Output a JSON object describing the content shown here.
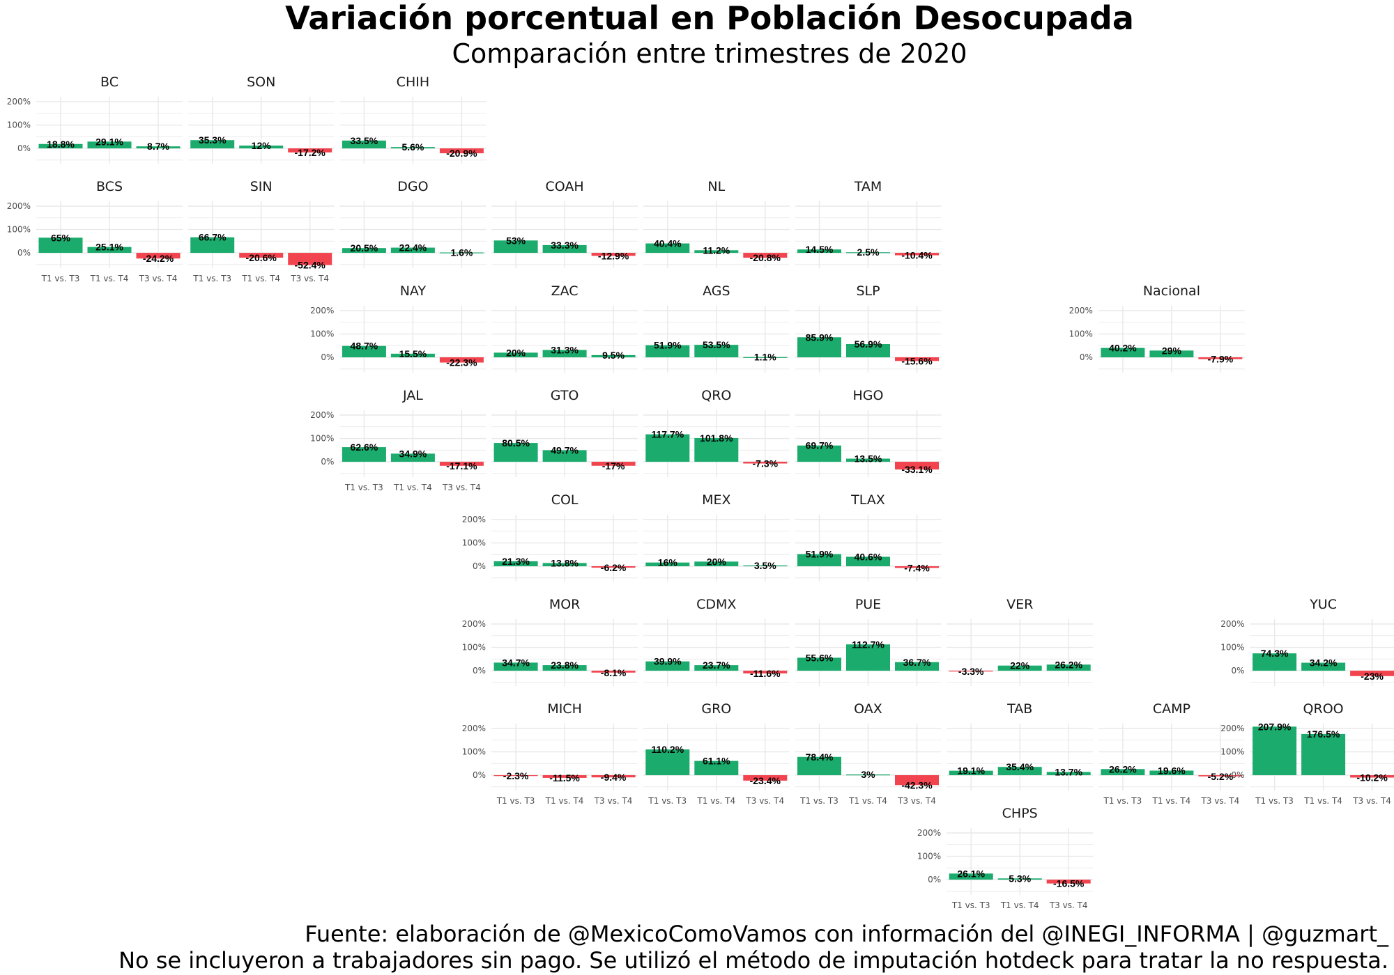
{
  "chart_data": {
    "type": "bar",
    "title": "Variación porcentual en Población Desocupada",
    "subtitle": "Comparación entre trimestres de 2020",
    "caption": [
      "Fuente: elaboración de @MexicoComoVamos con información del @INEGI_INFORMA | @guzmart_",
      "No se incluyeron a trabajadores sin pago. Se utilizó el método de imputación hotdeck para tratar la no respuesta."
    ],
    "categories": [
      "T1 vs. T3",
      "T1 vs. T4",
      "T3 vs. T4"
    ],
    "y_ticks": [
      0,
      100,
      200
    ],
    "y_tick_labels": [
      "0%",
      "100%",
      "200%"
    ],
    "ylim": [
      -52.4,
      207.9
    ],
    "colors": {
      "positive": "#1aab6d",
      "negative": "#f2444f",
      "grid": "#e8e8e8"
    },
    "facets": [
      {
        "name": "BC",
        "row": 0,
        "col": 0,
        "values": [
          18.8,
          29.1,
          8.7
        ],
        "labels": [
          "18.8%",
          "29.1%",
          "8.7%"
        ]
      },
      {
        "name": "SON",
        "row": 0,
        "col": 1,
        "values": [
          35.3,
          12,
          -17.2
        ],
        "labels": [
          "35.3%",
          "12%",
          "-17.2%"
        ]
      },
      {
        "name": "CHIH",
        "row": 0,
        "col": 2,
        "values": [
          33.5,
          5.6,
          -20.9
        ],
        "labels": [
          "33.5%",
          "5.6%",
          "-20.9%"
        ]
      },
      {
        "name": "BCS",
        "row": 1,
        "col": 0,
        "values": [
          65,
          25.1,
          -24.2
        ],
        "labels": [
          "65%",
          "25.1%",
          "-24.2%"
        ]
      },
      {
        "name": "SIN",
        "row": 1,
        "col": 1,
        "values": [
          66.7,
          -20.6,
          -52.4
        ],
        "labels": [
          "66.7%",
          "-20.6%",
          "-52.4%"
        ]
      },
      {
        "name": "DGO",
        "row": 1,
        "col": 2,
        "values": [
          20.5,
          22.4,
          1.6
        ],
        "labels": [
          "20.5%",
          "22.4%",
          "1.6%"
        ]
      },
      {
        "name": "COAH",
        "row": 1,
        "col": 3,
        "values": [
          53,
          33.3,
          -12.9
        ],
        "labels": [
          "53%",
          "33.3%",
          "-12.9%"
        ]
      },
      {
        "name": "NL",
        "row": 1,
        "col": 4,
        "values": [
          40.4,
          11.2,
          -20.8
        ],
        "labels": [
          "40.4%",
          "11.2%",
          "-20.8%"
        ]
      },
      {
        "name": "TAM",
        "row": 1,
        "col": 5,
        "values": [
          14.5,
          2.5,
          -10.4
        ],
        "labels": [
          "14.5%",
          "2.5%",
          "-10.4%"
        ]
      },
      {
        "name": "NAY",
        "row": 2,
        "col": 2,
        "values": [
          48.7,
          15.5,
          -22.3
        ],
        "labels": [
          "48.7%",
          "15.5%",
          "-22.3%"
        ]
      },
      {
        "name": "ZAC",
        "row": 2,
        "col": 3,
        "values": [
          20,
          31.3,
          9.5
        ],
        "labels": [
          "20%",
          "31.3%",
          "9.5%"
        ]
      },
      {
        "name": "AGS",
        "row": 2,
        "col": 4,
        "values": [
          51.9,
          53.5,
          1.1
        ],
        "labels": [
          "51.9%",
          "53.5%",
          "1.1%"
        ]
      },
      {
        "name": "SLP",
        "row": 2,
        "col": 5,
        "values": [
          85.9,
          56.9,
          -15.6
        ],
        "labels": [
          "85.9%",
          "56.9%",
          "-15.6%"
        ]
      },
      {
        "name": "Nacional",
        "row": 2,
        "col": 7,
        "values": [
          40.2,
          29,
          -7.9
        ],
        "labels": [
          "40.2%",
          "29%",
          "-7.9%"
        ]
      },
      {
        "name": "JAL",
        "row": 3,
        "col": 2,
        "values": [
          62.6,
          34.9,
          -17.1
        ],
        "labels": [
          "62.6%",
          "34.9%",
          "-17.1%"
        ]
      },
      {
        "name": "GTO",
        "row": 3,
        "col": 3,
        "values": [
          80.5,
          49.7,
          -17
        ],
        "labels": [
          "80.5%",
          "49.7%",
          "-17%"
        ]
      },
      {
        "name": "QRO",
        "row": 3,
        "col": 4,
        "values": [
          117.7,
          101.8,
          -7.3
        ],
        "labels": [
          "117.7%",
          "101.8%",
          "-7.3%"
        ]
      },
      {
        "name": "HGO",
        "row": 3,
        "col": 5,
        "values": [
          69.7,
          13.5,
          -33.1
        ],
        "labels": [
          "69.7%",
          "13.5%",
          "-33.1%"
        ]
      },
      {
        "name": "COL",
        "row": 4,
        "col": 3,
        "values": [
          21.3,
          13.8,
          -6.2
        ],
        "labels": [
          "21.3%",
          "13.8%",
          "-6.2%"
        ]
      },
      {
        "name": "MEX",
        "row": 4,
        "col": 4,
        "values": [
          16,
          20,
          3.5
        ],
        "labels": [
          "16%",
          "20%",
          "3.5%"
        ]
      },
      {
        "name": "TLAX",
        "row": 4,
        "col": 5,
        "values": [
          51.9,
          40.6,
          -7.4
        ],
        "labels": [
          "51.9%",
          "40.6%",
          "-7.4%"
        ]
      },
      {
        "name": "MOR",
        "row": 5,
        "col": 3,
        "values": [
          34.7,
          23.8,
          -8.1
        ],
        "labels": [
          "34.7%",
          "23.8%",
          "-8.1%"
        ]
      },
      {
        "name": "CDMX",
        "row": 5,
        "col": 4,
        "values": [
          39.9,
          23.7,
          -11.6
        ],
        "labels": [
          "39.9%",
          "23.7%",
          "-11.6%"
        ]
      },
      {
        "name": "PUE",
        "row": 5,
        "col": 5,
        "values": [
          55.6,
          112.7,
          36.7
        ],
        "labels": [
          "55.6%",
          "112.7%",
          "36.7%"
        ]
      },
      {
        "name": "VER",
        "row": 5,
        "col": 6,
        "values": [
          -3.3,
          22,
          26.2
        ],
        "labels": [
          "-3.3%",
          "22%",
          "26.2%"
        ]
      },
      {
        "name": "YUC",
        "row": 5,
        "col": 8,
        "values": [
          74.3,
          34.2,
          -23
        ],
        "labels": [
          "74.3%",
          "34.2%",
          "-23%"
        ]
      },
      {
        "name": "MICH",
        "row": 6,
        "col": 3,
        "values": [
          -2.3,
          -11.5,
          -9.4
        ],
        "labels": [
          "-2.3%",
          "-11.5%",
          "-9.4%"
        ]
      },
      {
        "name": "GRO",
        "row": 6,
        "col": 4,
        "values": [
          110.2,
          61.1,
          -23.4
        ],
        "labels": [
          "110.2%",
          "61.1%",
          "-23.4%"
        ]
      },
      {
        "name": "OAX",
        "row": 6,
        "col": 5,
        "values": [
          78.4,
          3,
          -42.3
        ],
        "labels": [
          "78.4%",
          "3%",
          "-42.3%"
        ]
      },
      {
        "name": "TAB",
        "row": 6,
        "col": 6,
        "values": [
          19.1,
          35.4,
          13.7
        ],
        "labels": [
          "19.1%",
          "35.4%",
          "13.7%"
        ]
      },
      {
        "name": "CAMP",
        "row": 6,
        "col": 7,
        "values": [
          26.2,
          19.6,
          -5.2
        ],
        "labels": [
          "26.2%",
          "19.6%",
          "-5.2%"
        ]
      },
      {
        "name": "QROO",
        "row": 6,
        "col": 8,
        "values": [
          207.9,
          176.5,
          -10.2
        ],
        "labels": [
          "207.9%",
          "176.5%",
          "-10.2%"
        ]
      },
      {
        "name": "CHPS",
        "row": 7,
        "col": 6,
        "values": [
          26.1,
          5.3,
          -16.5
        ],
        "labels": [
          "26.1%",
          "5.3%",
          "-16.5%"
        ]
      }
    ],
    "y_axis_facets": [
      "BC",
      "BCS",
      "NAY",
      "JAL",
      "COL",
      "MOR",
      "MICH",
      "CHPS",
      "Nacional",
      "YUC",
      "QROO"
    ],
    "x_axis_facets": [
      "BCS",
      "SIN",
      "JAL",
      "MICH",
      "GRO",
      "OAX",
      "CAMP",
      "QROO",
      "CHPS"
    ]
  }
}
